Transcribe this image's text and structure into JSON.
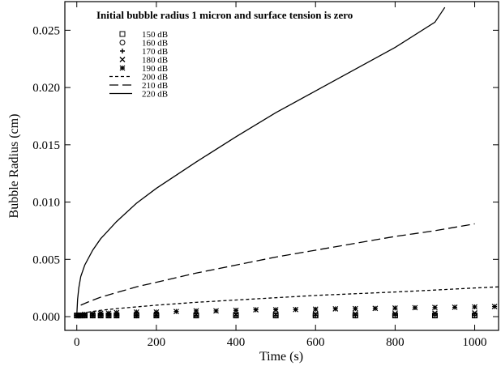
{
  "chart_data": {
    "type": "line",
    "title": "Initial bubble radius 1 micron and surface tension is zero",
    "xlabel": "Time (s)",
    "ylabel": "Bubble Radius (cm)",
    "xlim": [
      -30,
      1060
    ],
    "ylim": [
      -0.0012,
      0.0275
    ],
    "xticks": [
      0,
      200,
      400,
      600,
      800,
      1000
    ],
    "xtick_labels": [
      "0",
      "200",
      "400",
      "600",
      "800",
      "1000"
    ],
    "yticks": [
      0.0,
      0.005,
      0.01,
      0.015,
      0.02,
      0.025
    ],
    "ytick_labels": [
      "0.000",
      "0.005",
      "0.010",
      "0.015",
      "0.020",
      "0.025"
    ],
    "grid": false,
    "legend_position": "top-left",
    "series": [
      {
        "name": "150 dB",
        "marker": "square",
        "x": [
          0,
          5,
          10,
          20,
          40,
          60,
          80,
          100,
          150,
          200,
          300,
          400,
          500,
          600,
          700,
          800,
          900,
          1000
        ],
        "y": [
          0.0001,
          0.0001,
          0.0001,
          0.0001,
          0.0001,
          0.0001,
          0.0001,
          0.0001,
          0.0001,
          0.0001,
          0.0001,
          0.0001,
          0.0001,
          0.0001,
          0.0001,
          0.0001,
          0.0001,
          0.0001
        ]
      },
      {
        "name": "160 dB",
        "marker": "circle",
        "x": [
          0,
          5,
          10,
          20,
          40,
          60,
          80,
          100,
          150,
          200,
          300,
          400,
          500,
          600,
          700,
          800,
          900,
          1000
        ],
        "y": [
          0.0001,
          0.0001,
          0.0001,
          0.0001,
          0.0001,
          0.0001,
          0.0001,
          0.0001,
          0.0001,
          0.0001,
          0.0001,
          0.0001,
          0.0001,
          0.0001,
          0.0001,
          0.0001,
          0.0001,
          0.0001
        ]
      },
      {
        "name": "170 dB",
        "marker": "plus",
        "x": [
          0,
          5,
          10,
          20,
          40,
          60,
          80,
          100,
          150,
          200,
          300,
          400,
          500,
          600,
          700,
          800,
          900,
          1000
        ],
        "y": [
          0.0001,
          0.0001,
          0.0001,
          0.0001,
          0.0001,
          0.0001,
          0.0001,
          0.0001,
          0.0001,
          0.0001,
          0.0001,
          0.0001,
          0.0001,
          0.0001,
          0.0001,
          0.0001,
          0.0001,
          0.0001
        ]
      },
      {
        "name": "180 dB",
        "marker": "x",
        "x": [
          0,
          5,
          10,
          20,
          40,
          60,
          80,
          100,
          150,
          200,
          300,
          400,
          500,
          600,
          700,
          800,
          900,
          1000
        ],
        "y": [
          0.0001,
          0.0001,
          0.0001,
          0.0001,
          0.0001,
          0.0001,
          0.0001,
          0.0001,
          0.0001,
          0.00012,
          0.00015,
          0.00018,
          0.0002,
          0.00022,
          0.00025,
          0.00027,
          0.0003,
          0.00032
        ]
      },
      {
        "name": "190 dB",
        "marker": "asterisk",
        "x": [
          5,
          10,
          20,
          40,
          60,
          80,
          100,
          150,
          200,
          250,
          300,
          350,
          400,
          450,
          500,
          550,
          600,
          650,
          700,
          750,
          800,
          850,
          900,
          950,
          1000,
          1050
        ],
        "y": [
          0.0001,
          0.00015,
          0.0002,
          0.00025,
          0.0003,
          0.0003,
          0.00035,
          0.0004,
          0.0004,
          0.00045,
          0.0005,
          0.0005,
          0.00055,
          0.0006,
          0.0006,
          0.00062,
          0.00065,
          0.00068,
          0.0007,
          0.00072,
          0.00075,
          0.00078,
          0.0008,
          0.00082,
          0.00085,
          0.00088
        ]
      },
      {
        "name": "200 dB",
        "dash": "short",
        "x": [
          0,
          10,
          30,
          60,
          100,
          150,
          200,
          300,
          400,
          500,
          600,
          700,
          800,
          900,
          1000,
          1060
        ],
        "y": [
          0.0001,
          0.00025,
          0.0004,
          0.00055,
          0.0007,
          0.00085,
          0.001,
          0.00125,
          0.00145,
          0.00165,
          0.00185,
          0.002,
          0.00215,
          0.00232,
          0.0025,
          0.0026
        ]
      },
      {
        "name": "210 dB",
        "dash": "long",
        "x": [
          10,
          30,
          60,
          100,
          150,
          200,
          300,
          400,
          500,
          600,
          700,
          800,
          900,
          1000
        ],
        "y": [
          0.001,
          0.0013,
          0.0017,
          0.0021,
          0.0026,
          0.003,
          0.0038,
          0.0045,
          0.0052,
          0.0058,
          0.0064,
          0.007,
          0.0075,
          0.0081
        ]
      },
      {
        "name": "220 dB",
        "dash": "solid",
        "x": [
          0,
          2,
          5,
          10,
          20,
          40,
          60,
          100,
          150,
          200,
          300,
          400,
          500,
          600,
          700,
          800,
          900,
          925
        ],
        "y": [
          0.0001,
          0.0015,
          0.0025,
          0.0035,
          0.0045,
          0.0058,
          0.0068,
          0.0083,
          0.0099,
          0.0112,
          0.0135,
          0.0157,
          0.0178,
          0.0197,
          0.0216,
          0.0235,
          0.0257,
          0.027
        ]
      }
    ]
  }
}
